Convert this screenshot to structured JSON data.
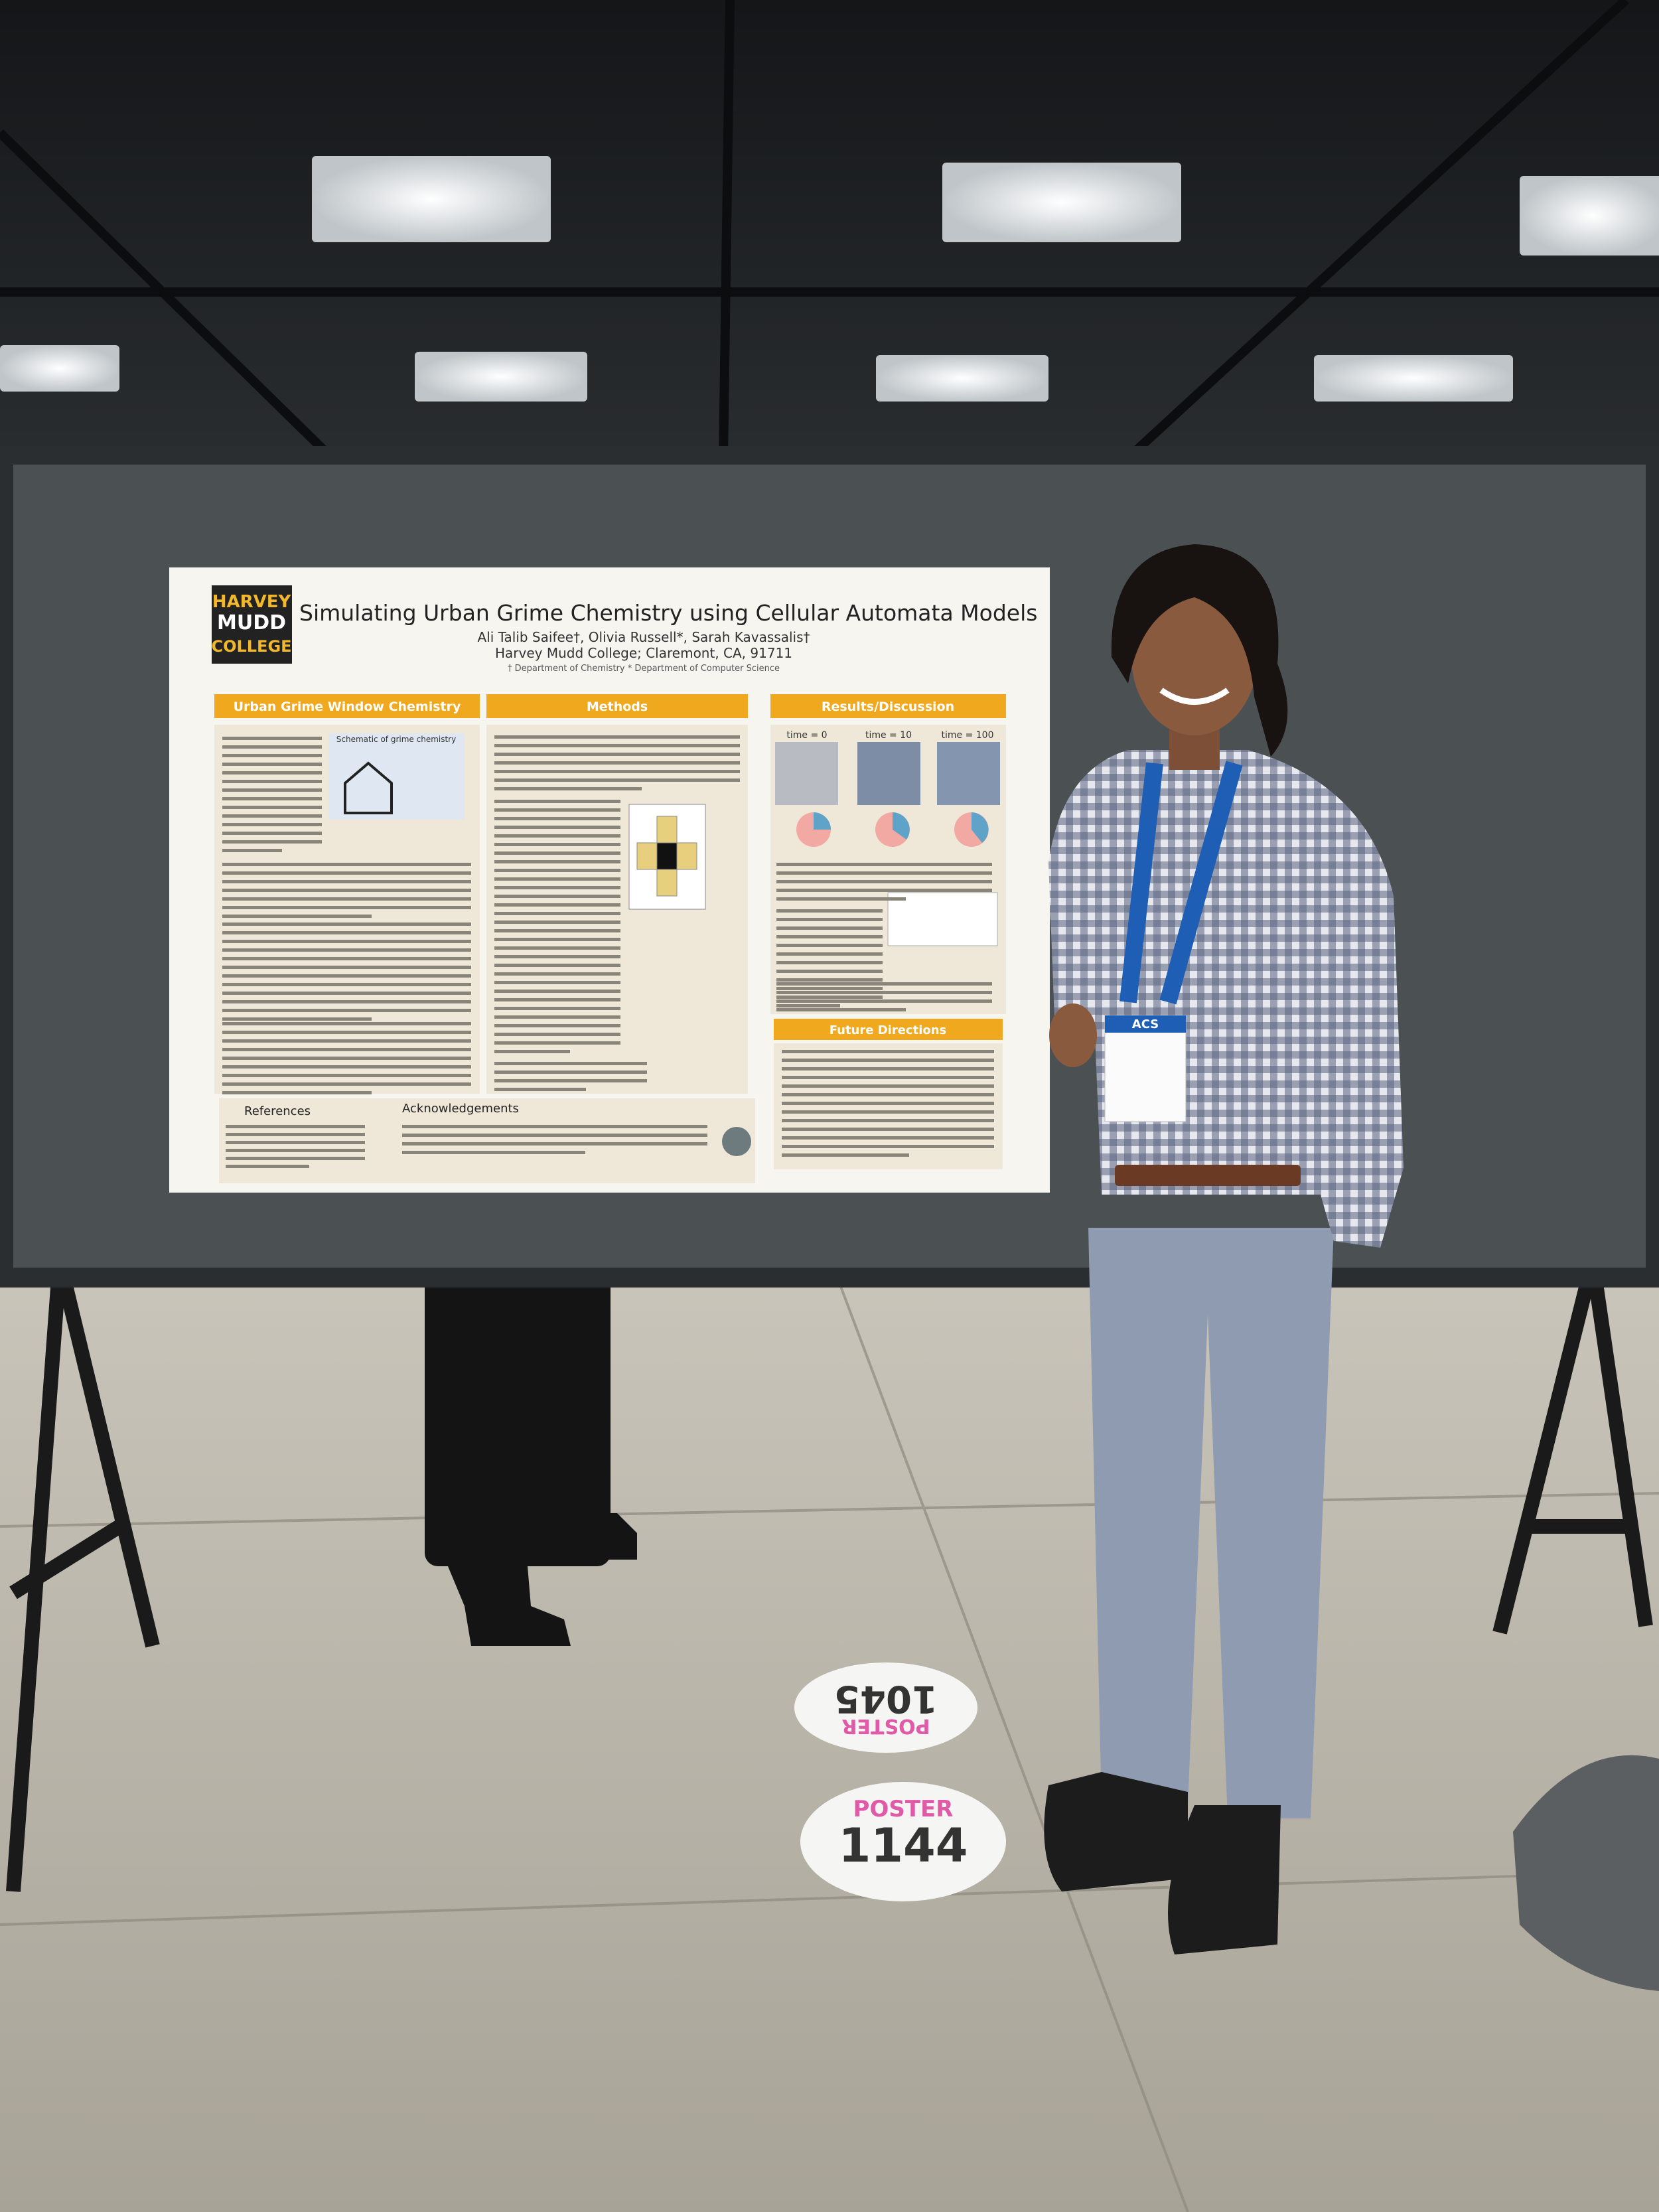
{
  "poster": {
    "logo": [
      "HARVEY",
      "MUDD",
      "COLLEGE"
    ],
    "title": "Simulating Urban Grime Chemistry using Cellular Automata Models",
    "authors": "Ali Talib Saifee†, Olivia Russell*, Sarah Kavassalis†",
    "affiliation": "Harvey Mudd College; Claremont, CA, 91711",
    "departments": "† Department of Chemistry  * Department of Computer Science",
    "sections": [
      "Urban Grime Window Chemistry",
      "Methods",
      "Results/Discussion",
      "Future Directions"
    ],
    "schematic": "Schematic of grime chemistry",
    "times": [
      "time = 0",
      "time = 10",
      "time = 100"
    ],
    "references": "References",
    "acknowledgements": "Acknowledgements"
  },
  "badge": {
    "org": "ACS"
  },
  "floor": [
    {
      "label": "POSTER",
      "number": "1045"
    },
    {
      "label": "POSTER",
      "number": "1144"
    }
  ]
}
